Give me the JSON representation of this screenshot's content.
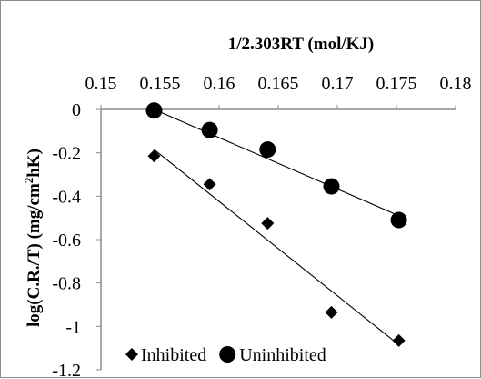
{
  "chart_data": {
    "type": "scatter",
    "xlabel": "1/2.303RT (mol/KJ)",
    "ylabel_main": "log(C.R./T) (mg/cm",
    "ylabel_sup": "2",
    "ylabel_end": "hK)",
    "x_axis_position": "top",
    "xlim": [
      0.15,
      0.18
    ],
    "ylim": [
      -1.2,
      0
    ],
    "x_ticks": [
      0.15,
      0.155,
      0.16,
      0.165,
      0.17,
      0.175,
      0.18
    ],
    "x_tick_labels": [
      "0.15",
      "0.155",
      "0.16",
      "0.165",
      "0.17",
      "0.175",
      "0.18"
    ],
    "y_ticks": [
      0,
      -0.2,
      -0.4,
      -0.6,
      -0.8,
      -1,
      -1.2
    ],
    "y_tick_labels": [
      "0",
      "-0.2",
      "-0.4",
      "-0.6",
      "-0.8",
      "-1",
      "-1.2"
    ],
    "grid": false,
    "legend_position": "bottom",
    "series": [
      {
        "name": "Inhibited",
        "marker": "diamond",
        "color": "#000000",
        "x": [
          0.1545,
          0.1592,
          0.1641,
          0.1695,
          0.1752
        ],
        "y": [
          -0.215,
          -0.345,
          -0.525,
          -0.935,
          -1.065
        ],
        "trendline": [
          [
            0.1545,
            -0.185
          ],
          [
            0.1752,
            -1.085
          ]
        ]
      },
      {
        "name": "Uninhibited",
        "marker": "circle",
        "color": "#000000",
        "x": [
          0.1545,
          0.1592,
          0.1641,
          0.1695,
          0.1752
        ],
        "y": [
          -0.005,
          -0.095,
          -0.185,
          -0.355,
          -0.51
        ],
        "trendline": [
          [
            0.1545,
            0.0
          ],
          [
            0.1752,
            -0.49
          ]
        ]
      }
    ]
  }
}
